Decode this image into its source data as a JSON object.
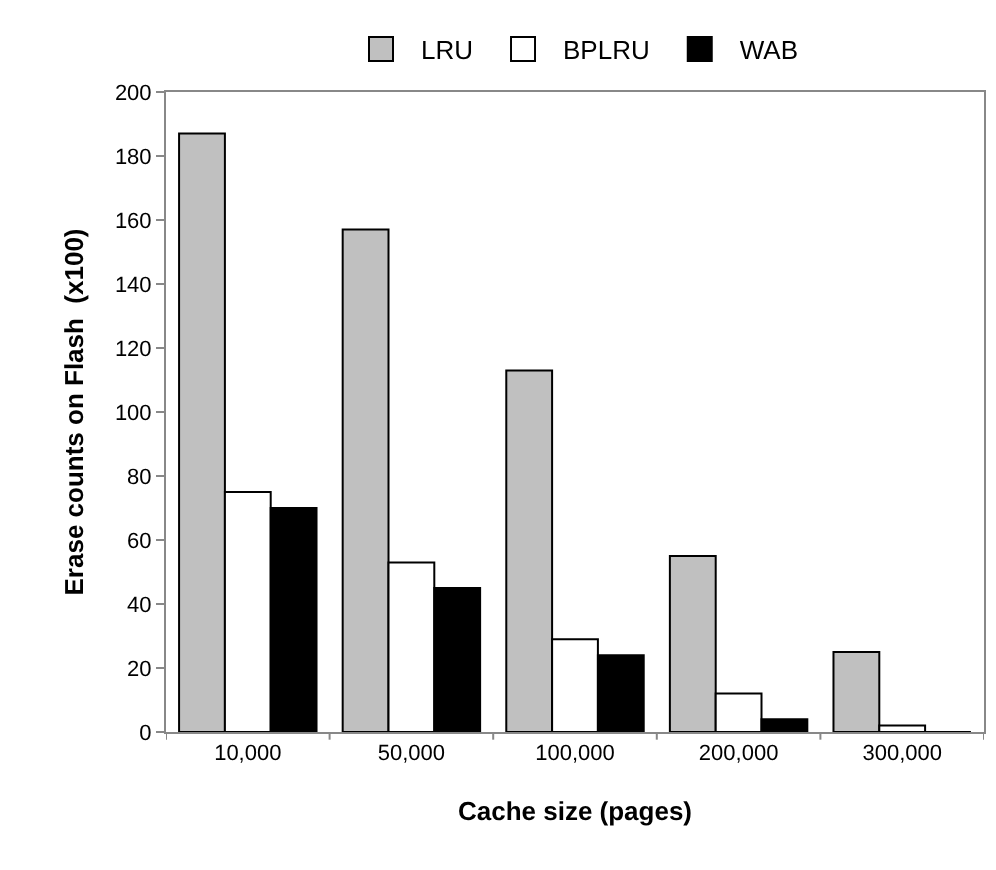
{
  "chart_data": {
    "type": "bar",
    "xlabel": "Cache size (pages)",
    "ylabel": "Erase counts on Flash  (x100)",
    "categories": [
      "10,000",
      "50,000",
      "100,000",
      "200,000",
      "300,000"
    ],
    "series": [
      {
        "name": "LRU",
        "color": "#c0c0c0",
        "values": [
          187,
          157,
          113,
          55,
          25
        ]
      },
      {
        "name": "BPLRU",
        "color": "#ffffff",
        "values": [
          75,
          53,
          29,
          12,
          2
        ]
      },
      {
        "name": "WAB",
        "color": "#000000",
        "values": [
          70,
          45,
          24,
          4,
          0
        ]
      }
    ],
    "ylim": [
      0,
      200
    ],
    "yticks": [
      0,
      20,
      40,
      60,
      80,
      100,
      120,
      140,
      160,
      180,
      200
    ],
    "grid": false,
    "legend": "top"
  }
}
